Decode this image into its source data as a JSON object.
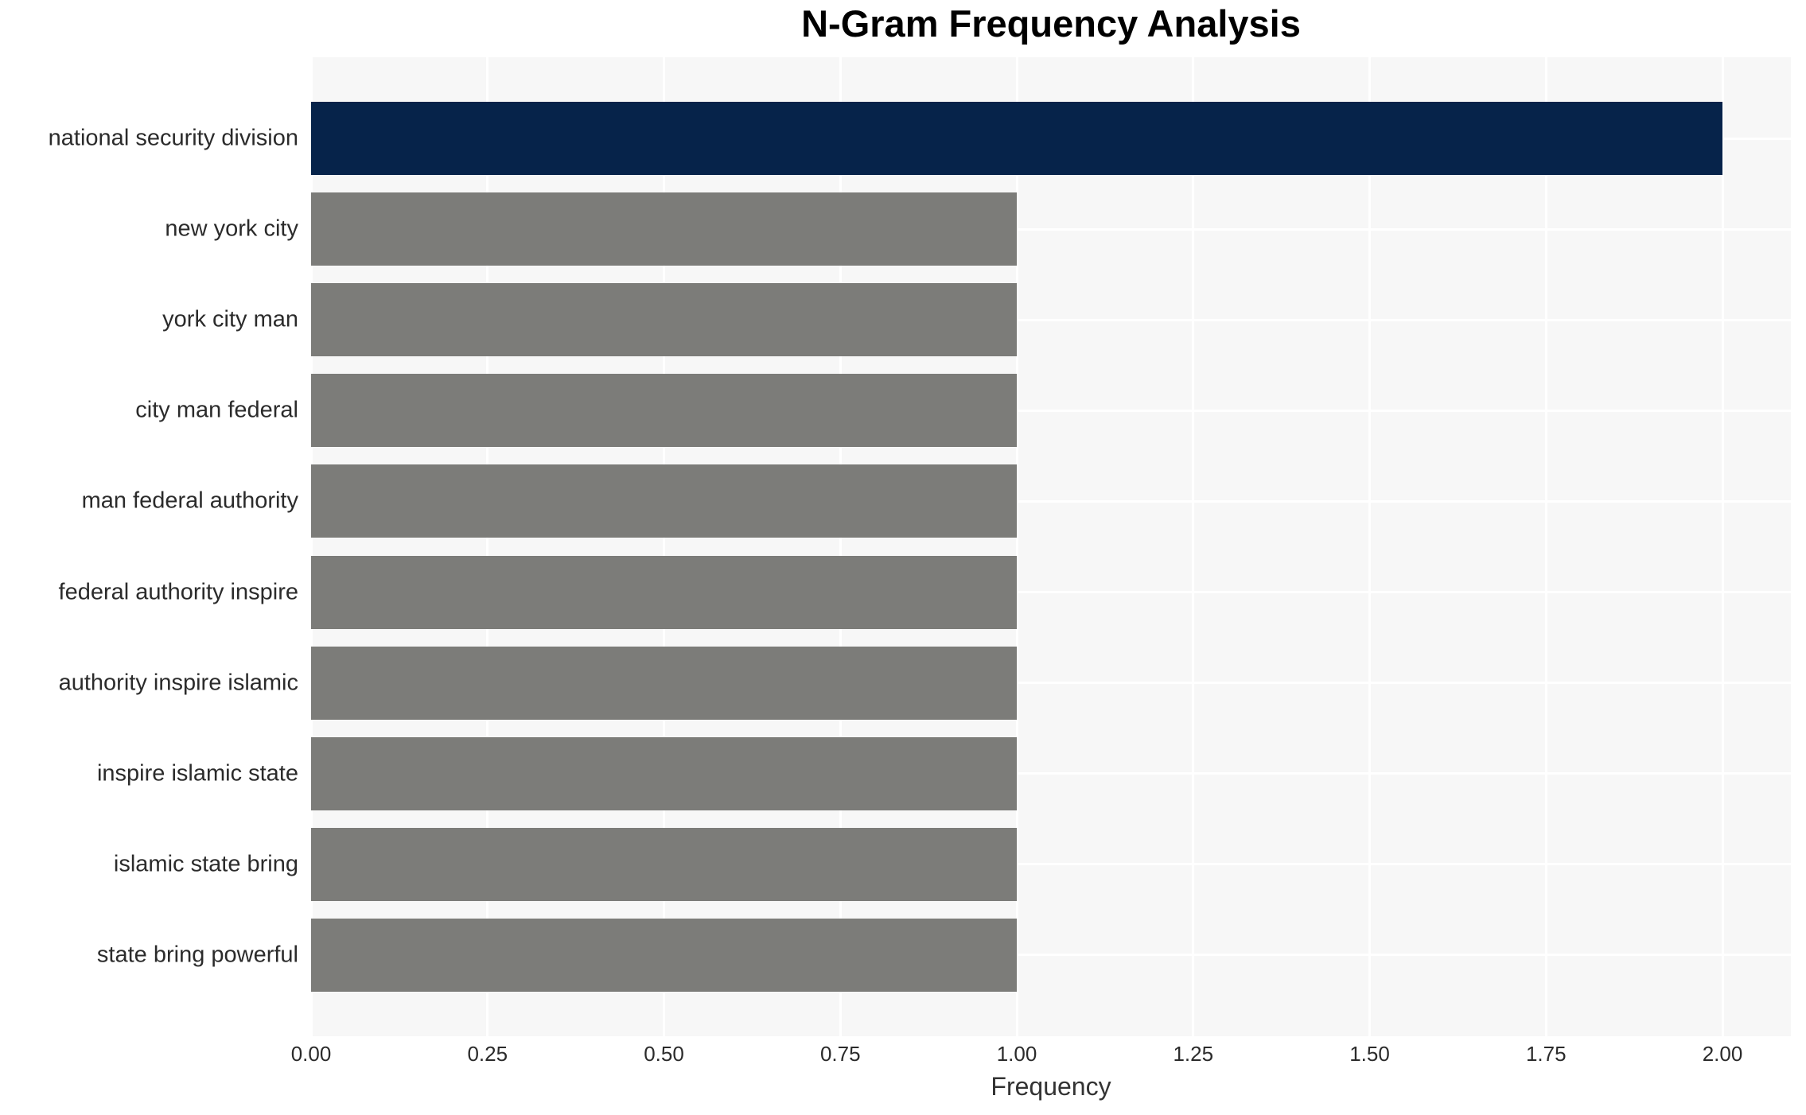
{
  "chart_data": {
    "type": "bar",
    "orientation": "horizontal",
    "title": "N-Gram Frequency Analysis",
    "xlabel": "Frequency",
    "ylabel": "",
    "categories": [
      "national security division",
      "new york city",
      "york city man",
      "city man federal",
      "man federal authority",
      "federal authority inspire",
      "authority inspire islamic",
      "inspire islamic state",
      "islamic state bring",
      "state bring powerful"
    ],
    "values": [
      2,
      1,
      1,
      1,
      1,
      1,
      1,
      1,
      1,
      1
    ],
    "xlim": [
      0,
      2.1
    ],
    "xticks": [
      0,
      0.25,
      0.5,
      0.75,
      1.0,
      1.25,
      1.5,
      1.75,
      2.0
    ],
    "xtick_labels": [
      "0.00",
      "0.25",
      "0.50",
      "0.75",
      "1.00",
      "1.25",
      "1.50",
      "1.75",
      "2.00"
    ],
    "grid": true,
    "legend": false,
    "colors": {
      "highlight_bar": "#06234a",
      "default_bar": "#7c7c79",
      "plot_background": "#f7f7f7",
      "gridline": "#ffffff",
      "label_text": "#2b2b2b",
      "title_text": "#000000"
    }
  }
}
